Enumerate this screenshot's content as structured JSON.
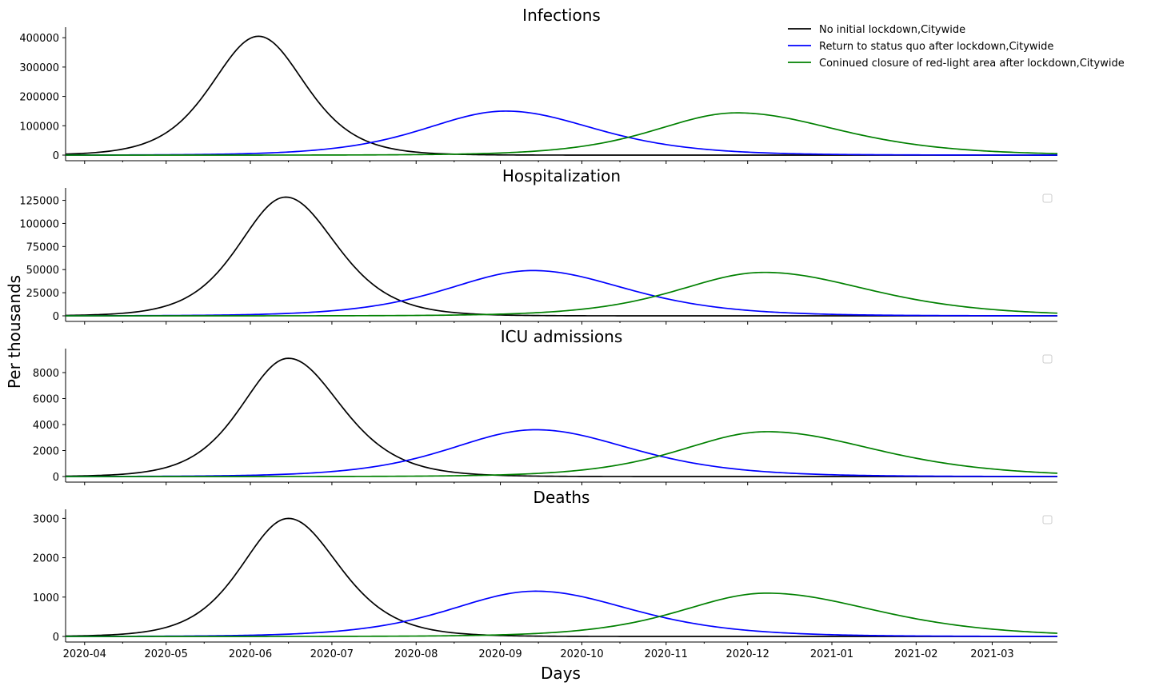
{
  "figure": {
    "xlabel": "Days",
    "ylabel": "Per thousands"
  },
  "legend": {
    "entries": [
      {
        "label": "No initial lockdown,Citywide",
        "color": "#000000"
      },
      {
        "label": "Return to status quo after lockdown,Citywide",
        "color": "#0000ff"
      },
      {
        "label": "Coninued closure of red-light area after lockdown,Citywide",
        "color": "#008000"
      }
    ]
  },
  "chart_data": [
    {
      "type": "line",
      "title": "Infections",
      "xlim": [
        "2020-03-25",
        "2021-03-25"
      ],
      "ylim": [
        0,
        425000
      ],
      "yticks": [
        0,
        100000,
        200000,
        300000,
        400000
      ],
      "xticks": [
        "2020-04",
        "2020-05",
        "2020-06",
        "2020-07",
        "2020-08",
        "2020-09",
        "2020-10",
        "2020-11",
        "2020-12",
        "2021-01",
        "2021-02",
        "2021-03"
      ],
      "legend": "top-right",
      "series": [
        {
          "name": "No initial lockdown,Citywide",
          "color": "#000000",
          "peak_date": "2020-06-04",
          "peak": 405000,
          "rise_days": 23,
          "fall_days": 23
        },
        {
          "name": "Return to status quo after lockdown,Citywide",
          "color": "#0000ff",
          "peak_date": "2020-09-03",
          "peak": 150000,
          "rise_days": 40,
          "fall_days": 44
        },
        {
          "name": "Coninued closure of red-light area after lockdown,Citywide",
          "color": "#008000",
          "peak_date": "2020-11-27",
          "peak": 144000,
          "rise_days": 40,
          "fall_days": 50
        }
      ]
    },
    {
      "type": "line",
      "title": "Hospitalization",
      "xlim": [
        "2020-03-25",
        "2021-03-25"
      ],
      "ylim": [
        0,
        135000
      ],
      "yticks": [
        0,
        25000,
        50000,
        75000,
        100000,
        125000
      ],
      "xticks": [
        "2020-04",
        "2020-05",
        "2020-06",
        "2020-07",
        "2020-08",
        "2020-09",
        "2020-10",
        "2020-11",
        "2020-12",
        "2021-01",
        "2021-02",
        "2021-03"
      ],
      "legend": "top-right (empty)",
      "series": [
        {
          "name": "No initial lockdown,Citywide",
          "color": "#000000",
          "peak_date": "2020-06-14",
          "peak": 128500,
          "rise_days": 23,
          "fall_days": 25
        },
        {
          "name": "Return to status quo after lockdown,Citywide",
          "color": "#0000ff",
          "peak_date": "2020-09-13",
          "peak": 49000,
          "rise_days": 42,
          "fall_days": 46
        },
        {
          "name": "Coninued closure of red-light area after lockdown,Citywide",
          "color": "#008000",
          "peak_date": "2020-12-07",
          "peak": 47000,
          "rise_days": 42,
          "fall_days": 52
        }
      ]
    },
    {
      "type": "line",
      "title": "ICU admissions",
      "xlim": [
        "2020-03-25",
        "2021-03-25"
      ],
      "ylim": [
        0,
        9600
      ],
      "yticks": [
        0,
        2000,
        4000,
        6000,
        8000
      ],
      "xticks": [
        "2020-04",
        "2020-05",
        "2020-06",
        "2020-07",
        "2020-08",
        "2020-09",
        "2020-10",
        "2020-11",
        "2020-12",
        "2021-01",
        "2021-02",
        "2021-03"
      ],
      "legend": "top-right (empty)",
      "series": [
        {
          "name": "No initial lockdown,Citywide",
          "color": "#000000",
          "peak_date": "2020-06-15",
          "peak": 9100,
          "rise_days": 23,
          "fall_days": 26
        },
        {
          "name": "Return to status quo after lockdown,Citywide",
          "color": "#0000ff",
          "peak_date": "2020-09-14",
          "peak": 3600,
          "rise_days": 42,
          "fall_days": 47
        },
        {
          "name": "Coninued closure of red-light area after lockdown,Citywide",
          "color": "#008000",
          "peak_date": "2020-12-08",
          "peak": 3450,
          "rise_days": 42,
          "fall_days": 54
        }
      ]
    },
    {
      "type": "line",
      "title": "Deaths",
      "xlim": [
        "2020-03-25",
        "2021-03-25"
      ],
      "ylim": [
        0,
        3150
      ],
      "yticks": [
        0,
        1000,
        2000,
        3000
      ],
      "xticks": [
        "2020-04",
        "2020-05",
        "2020-06",
        "2020-07",
        "2020-08",
        "2020-09",
        "2020-10",
        "2020-11",
        "2020-12",
        "2021-01",
        "2021-02",
        "2021-03"
      ],
      "legend": "top-right (empty)",
      "series": [
        {
          "name": "No initial lockdown,Citywide",
          "color": "#000000",
          "peak_date": "2020-06-15",
          "peak": 3000,
          "rise_days": 23,
          "fall_days": 25
        },
        {
          "name": "Return to status quo after lockdown,Citywide",
          "color": "#0000ff",
          "peak_date": "2020-09-14",
          "peak": 1150,
          "rise_days": 42,
          "fall_days": 47
        },
        {
          "name": "Coninued closure of red-light area after lockdown,Citywide",
          "color": "#008000",
          "peak_date": "2020-12-08",
          "peak": 1100,
          "rise_days": 42,
          "fall_days": 54
        }
      ]
    }
  ]
}
